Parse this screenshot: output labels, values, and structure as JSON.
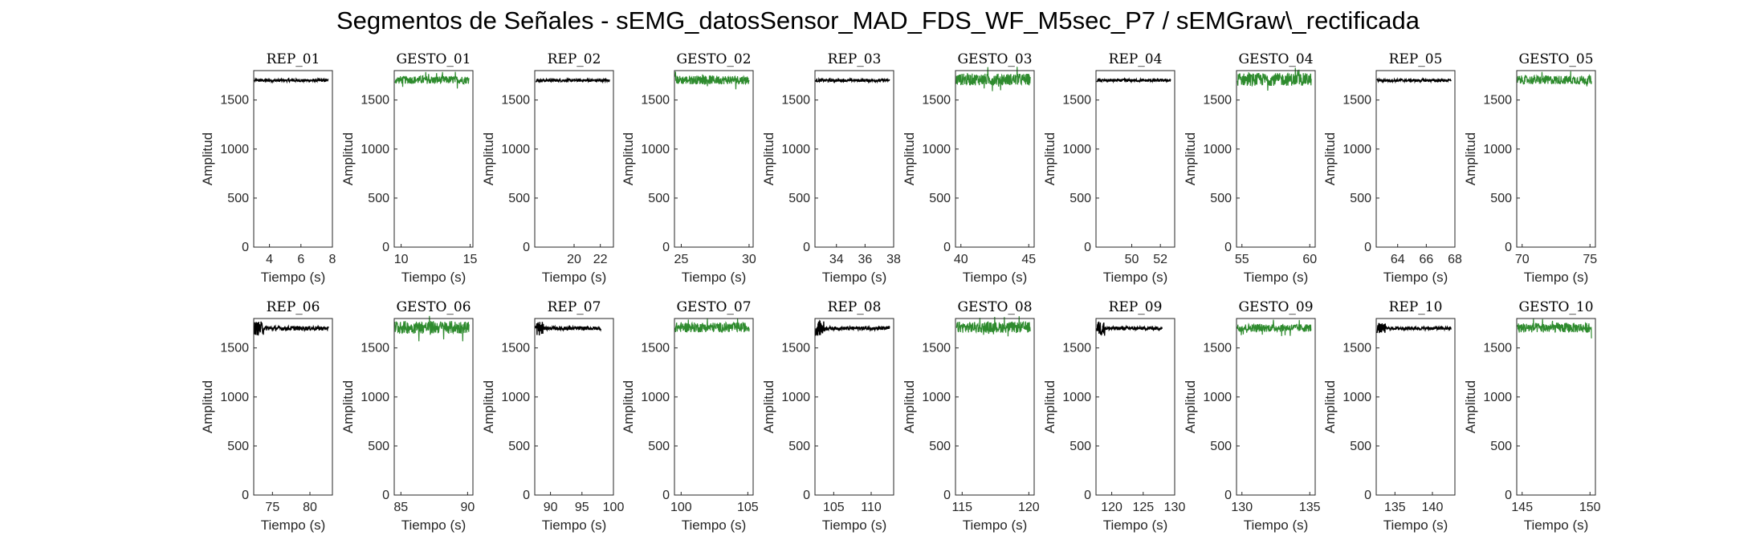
{
  "figure": {
    "title": "Segmentos de Señales - sEMG_datosSensor_MAD_FDS_WF_M5sec_P7 / sEMGraw\\_rectificada"
  },
  "colors": {
    "rep": "#000000",
    "gesto": "#2e8b2e",
    "axis": "#262626"
  },
  "chart_data": [
    {
      "type": "line",
      "title": "REP_01",
      "kind": "rep",
      "xlabel": "Tiempo (s)",
      "ylabel": "Amplitud",
      "xlim": [
        3,
        8
      ],
      "xticks": [
        4,
        6,
        8
      ],
      "ylim": [
        0,
        1800
      ],
      "yticks": [
        0,
        500,
        1000,
        1500
      ],
      "level": 1700,
      "noise": 14,
      "spikes": 0,
      "grid": false
    },
    {
      "type": "line",
      "title": "GESTO_01",
      "kind": "gesto",
      "xlabel": "Tiempo (s)",
      "ylabel": "Amplitud",
      "xlim": [
        9.5,
        15.2
      ],
      "xticks": [
        10,
        15
      ],
      "ylim": [
        0,
        1800
      ],
      "yticks": [
        0,
        500,
        1000,
        1500
      ],
      "level": 1705,
      "noise": 40,
      "spikes": 0,
      "grid": false
    },
    {
      "type": "line",
      "title": "REP_02",
      "kind": "rep",
      "xlabel": "Tiempo (s)",
      "ylabel": "Amplitud",
      "xlim": [
        17,
        23
      ],
      "xticks": [
        20,
        22
      ],
      "ylim": [
        0,
        1800
      ],
      "yticks": [
        0,
        500,
        1000,
        1500
      ],
      "level": 1700,
      "noise": 14,
      "spikes": 0,
      "grid": false
    },
    {
      "type": "line",
      "title": "GESTO_02",
      "kind": "gesto",
      "xlabel": "Tiempo (s)",
      "ylabel": "Amplitud",
      "xlim": [
        24.5,
        30.3
      ],
      "xticks": [
        25,
        30
      ],
      "ylim": [
        0,
        1800
      ],
      "yticks": [
        0,
        500,
        1000,
        1500
      ],
      "level": 1705,
      "noise": 45,
      "spikes": 0,
      "grid": false
    },
    {
      "type": "line",
      "title": "REP_03",
      "kind": "rep",
      "xlabel": "Tiempo (s)",
      "ylabel": "Amplitud",
      "xlim": [
        32.5,
        38
      ],
      "xticks": [
        34,
        36,
        38
      ],
      "ylim": [
        0,
        1800
      ],
      "yticks": [
        0,
        500,
        1000,
        1500
      ],
      "level": 1700,
      "noise": 14,
      "spikes": 0,
      "grid": false
    },
    {
      "type": "line",
      "title": "GESTO_03",
      "kind": "gesto",
      "xlabel": "Tiempo (s)",
      "ylabel": "Amplitud",
      "xlim": [
        39.6,
        45.4
      ],
      "xticks": [
        40,
        45
      ],
      "ylim": [
        0,
        1800
      ],
      "yticks": [
        0,
        500,
        1000,
        1500
      ],
      "level": 1710,
      "noise": 60,
      "spikes": 0,
      "grid": false
    },
    {
      "type": "line",
      "title": "REP_04",
      "kind": "rep",
      "xlabel": "Tiempo (s)",
      "ylabel": "Amplitud",
      "xlim": [
        47.5,
        53
      ],
      "xticks": [
        50,
        52
      ],
      "ylim": [
        0,
        1800
      ],
      "yticks": [
        0,
        500,
        1000,
        1500
      ],
      "level": 1700,
      "noise": 14,
      "spikes": 0,
      "grid": false
    },
    {
      "type": "line",
      "title": "GESTO_04",
      "kind": "gesto",
      "xlabel": "Tiempo (s)",
      "ylabel": "Amplitud",
      "xlim": [
        54.6,
        60.4
      ],
      "xticks": [
        55,
        60
      ],
      "ylim": [
        0,
        1800
      ],
      "yticks": [
        0,
        500,
        1000,
        1500
      ],
      "level": 1710,
      "noise": 65,
      "spikes": 0,
      "grid": false
    },
    {
      "type": "line",
      "title": "REP_05",
      "kind": "rep",
      "xlabel": "Tiempo (s)",
      "ylabel": "Amplitud",
      "xlim": [
        62.5,
        68
      ],
      "xticks": [
        64,
        66,
        68
      ],
      "ylim": [
        0,
        1800
      ],
      "yticks": [
        0,
        500,
        1000,
        1500
      ],
      "level": 1700,
      "noise": 14,
      "spikes": 0,
      "grid": false
    },
    {
      "type": "line",
      "title": "GESTO_05",
      "kind": "gesto",
      "xlabel": "Tiempo (s)",
      "ylabel": "Amplitud",
      "xlim": [
        69.6,
        75.4
      ],
      "xticks": [
        70,
        75
      ],
      "ylim": [
        0,
        1800
      ],
      "yticks": [
        0,
        500,
        1000,
        1500
      ],
      "level": 1705,
      "noise": 45,
      "spikes": 0,
      "grid": false
    },
    {
      "type": "line",
      "title": "REP_06",
      "kind": "rep",
      "xlabel": "Tiempo (s)",
      "ylabel": "Amplitud",
      "xlim": [
        72.5,
        83
      ],
      "xticks": [
        75,
        80
      ],
      "ylim": [
        0,
        1800
      ],
      "yticks": [
        0,
        500,
        1000,
        1500
      ],
      "level": 1700,
      "noise": 22,
      "spikes": 1,
      "grid": false
    },
    {
      "type": "line",
      "title": "GESTO_06",
      "kind": "gesto",
      "xlabel": "Tiempo (s)",
      "ylabel": "Amplitud",
      "xlim": [
        84.5,
        90.4
      ],
      "xticks": [
        85,
        90
      ],
      "ylim": [
        0,
        1800
      ],
      "yticks": [
        0,
        500,
        1000,
        1500
      ],
      "level": 1710,
      "noise": 65,
      "spikes": 0,
      "grid": false
    },
    {
      "type": "line",
      "title": "REP_07",
      "kind": "rep",
      "xlabel": "Tiempo (s)",
      "ylabel": "Amplitud",
      "xlim": [
        87.5,
        100
      ],
      "xticks": [
        90,
        95,
        100
      ],
      "ylim": [
        0,
        1800
      ],
      "yticks": [
        0,
        500,
        1000,
        1500
      ],
      "level": 1700,
      "noise": 18,
      "spikes": 2,
      "grid": false,
      "data_end": 98
    },
    {
      "type": "line",
      "title": "GESTO_07",
      "kind": "gesto",
      "xlabel": "Tiempo (s)",
      "ylabel": "Amplitud",
      "xlim": [
        99.5,
        105.4
      ],
      "xticks": [
        100,
        105
      ],
      "ylim": [
        0,
        1800
      ],
      "yticks": [
        0,
        500,
        1000,
        1500
      ],
      "level": 1710,
      "noise": 50,
      "spikes": 0,
      "grid": false
    },
    {
      "type": "line",
      "title": "REP_08",
      "kind": "rep",
      "xlabel": "Tiempo (s)",
      "ylabel": "Amplitud",
      "xlim": [
        102.5,
        113
      ],
      "xticks": [
        105,
        110
      ],
      "ylim": [
        0,
        1800
      ],
      "yticks": [
        0,
        500,
        1000,
        1500
      ],
      "level": 1700,
      "noise": 18,
      "spikes": 2,
      "grid": false
    },
    {
      "type": "line",
      "title": "GESTO_08",
      "kind": "gesto",
      "xlabel": "Tiempo (s)",
      "ylabel": "Amplitud",
      "xlim": [
        114.5,
        120.4
      ],
      "xticks": [
        115,
        120
      ],
      "ylim": [
        0,
        1800
      ],
      "yticks": [
        0,
        500,
        1000,
        1500
      ],
      "level": 1710,
      "noise": 55,
      "spikes": 0,
      "grid": false
    },
    {
      "type": "line",
      "title": "REP_09",
      "kind": "rep",
      "xlabel": "Tiempo (s)",
      "ylabel": "Amplitud",
      "xlim": [
        117.5,
        130
      ],
      "xticks": [
        120,
        125,
        130
      ],
      "ylim": [
        0,
        1800
      ],
      "yticks": [
        0,
        500,
        1000,
        1500
      ],
      "level": 1700,
      "noise": 18,
      "spikes": 2,
      "grid": false,
      "data_end": 128
    },
    {
      "type": "line",
      "title": "GESTO_09",
      "kind": "gesto",
      "xlabel": "Tiempo (s)",
      "ylabel": "Amplitud",
      "xlim": [
        129.6,
        135.4
      ],
      "xticks": [
        130,
        135
      ],
      "ylim": [
        0,
        1800
      ],
      "yticks": [
        0,
        500,
        1000,
        1500
      ],
      "level": 1705,
      "noise": 40,
      "spikes": 0,
      "grid": false
    },
    {
      "type": "line",
      "title": "REP_10",
      "kind": "rep",
      "xlabel": "Tiempo (s)",
      "ylabel": "Amplitud",
      "xlim": [
        132.5,
        143
      ],
      "xticks": [
        135,
        140
      ],
      "ylim": [
        0,
        1800
      ],
      "yticks": [
        0,
        500,
        1000,
        1500
      ],
      "level": 1700,
      "noise": 16,
      "spikes": 1,
      "grid": false
    },
    {
      "type": "line",
      "title": "GESTO_10",
      "kind": "gesto",
      "xlabel": "Tiempo (s)",
      "ylabel": "Amplitud",
      "xlim": [
        144.6,
        150.4
      ],
      "xticks": [
        145,
        150
      ],
      "ylim": [
        0,
        1800
      ],
      "yticks": [
        0,
        500,
        1000,
        1500
      ],
      "level": 1705,
      "noise": 50,
      "spikes": 0,
      "grid": false
    }
  ]
}
